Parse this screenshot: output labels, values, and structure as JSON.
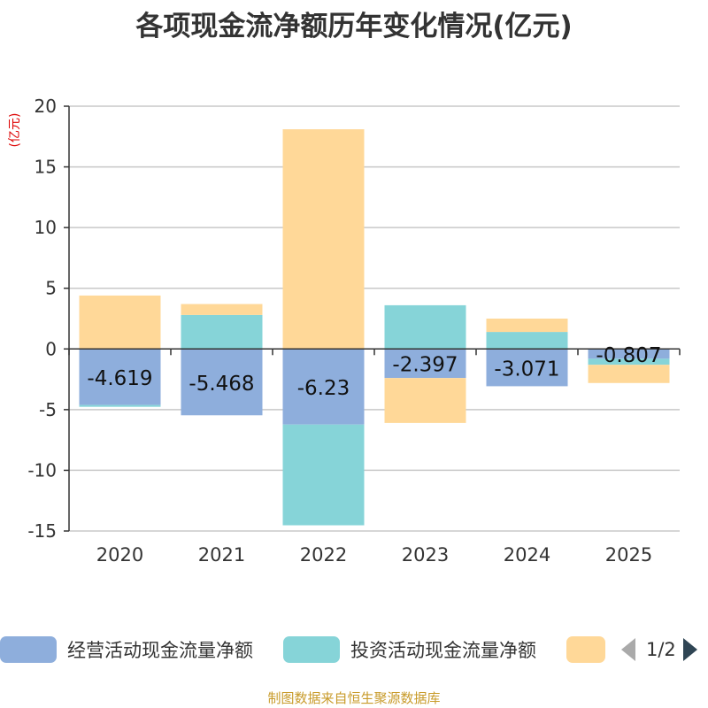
{
  "chart_data": {
    "type": "bar",
    "stacked": true,
    "title": "各项现金流净额历年变化情况(亿元)",
    "ylabel": "(亿元)",
    "categories": [
      "2020",
      "2021",
      "2022",
      "2023",
      "2024",
      "2025"
    ],
    "ylim": [
      -15,
      20
    ],
    "yticks": [
      -15,
      -10,
      -5,
      0,
      5,
      10,
      15,
      20
    ],
    "grid": true,
    "series": [
      {
        "name": "经营活动现金流量净额",
        "color": "#8eaedc",
        "values": [
          -4.619,
          -5.468,
          -6.23,
          -2.397,
          -3.071,
          -0.807
        ],
        "labels": [
          "-4.619",
          "-5.468",
          "-6.23",
          "-2.397",
          "-3.071",
          "-0.807"
        ]
      },
      {
        "name": "投资活动现金流量净额",
        "color": "#86d4d8",
        "values": [
          -0.15,
          2.8,
          -8.3,
          3.6,
          1.4,
          -0.5
        ]
      },
      {
        "name": "",
        "color": "#ffd898",
        "values": [
          4.4,
          0.9,
          18.1,
          -3.7,
          1.1,
          -1.5
        ]
      }
    ]
  },
  "legend": {
    "pager_text": "1/2"
  },
  "source_note": "制图数据来自恒生聚源数据库"
}
